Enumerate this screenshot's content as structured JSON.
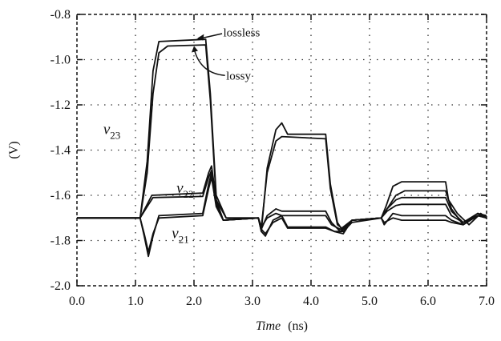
{
  "chart_data": {
    "type": "line",
    "title": "",
    "xlabel": {
      "italic": "Time",
      "unit": "(ns)"
    },
    "ylabel": "(V)",
    "xlim": [
      0.0,
      7.0
    ],
    "ylim": [
      -2.0,
      -0.8
    ],
    "x_ticks": [
      "0.0",
      "1.0",
      "2.0",
      "3.0",
      "4.0",
      "5.0",
      "6.0",
      "7.0"
    ],
    "y_ticks": [
      "-0.8",
      "-1.0",
      "-1.2",
      "-1.4",
      "-1.6",
      "-1.8",
      "-2.0"
    ],
    "grid": "dotted",
    "annotations": [
      {
        "text": "lossless",
        "x": 2.5,
        "y": -0.88
      },
      {
        "text": "lossy",
        "x": 2.55,
        "y": -1.07
      }
    ],
    "curve_labels": [
      {
        "symbol": "v",
        "sub": "23",
        "x": 0.45,
        "y": -1.33
      },
      {
        "symbol": "v",
        "sub": "22",
        "x": 1.7,
        "y": -1.59
      },
      {
        "symbol": "v",
        "sub": "21",
        "x": 1.62,
        "y": -1.79
      }
    ],
    "series": [
      {
        "name": "v23 lossless",
        "points": [
          [
            0,
            -1.7
          ],
          [
            1.08,
            -1.7
          ],
          [
            1.2,
            -1.45
          ],
          [
            1.3,
            -1.05
          ],
          [
            1.4,
            -0.92
          ],
          [
            2.2,
            -0.91
          ],
          [
            2.28,
            -1.15
          ],
          [
            2.38,
            -1.6
          ],
          [
            2.55,
            -1.7
          ],
          [
            3.1,
            -1.7
          ],
          [
            3.15,
            -1.76
          ],
          [
            3.25,
            -1.48
          ],
          [
            3.4,
            -1.31
          ],
          [
            3.5,
            -1.28
          ],
          [
            3.6,
            -1.33
          ],
          [
            4.25,
            -1.33
          ],
          [
            4.33,
            -1.55
          ],
          [
            4.45,
            -1.72
          ],
          [
            4.55,
            -1.76
          ],
          [
            4.7,
            -1.72
          ],
          [
            5.2,
            -1.7
          ],
          [
            5.28,
            -1.65
          ],
          [
            5.4,
            -1.56
          ],
          [
            5.55,
            -1.54
          ],
          [
            6.3,
            -1.54
          ],
          [
            6.35,
            -1.62
          ],
          [
            6.5,
            -1.68
          ],
          [
            6.7,
            -1.73
          ],
          [
            6.9,
            -1.68
          ],
          [
            7,
            -1.7
          ]
        ]
      },
      {
        "name": "v23 lossy",
        "points": [
          [
            0,
            -1.7
          ],
          [
            1.08,
            -1.7
          ],
          [
            1.2,
            -1.5
          ],
          [
            1.3,
            -1.15
          ],
          [
            1.4,
            -0.97
          ],
          [
            1.55,
            -0.94
          ],
          [
            2.2,
            -0.935
          ],
          [
            2.28,
            -1.18
          ],
          [
            2.38,
            -1.62
          ],
          [
            2.55,
            -1.7
          ],
          [
            3.1,
            -1.7
          ],
          [
            3.15,
            -1.74
          ],
          [
            3.25,
            -1.5
          ],
          [
            3.4,
            -1.36
          ],
          [
            3.5,
            -1.34
          ],
          [
            4.25,
            -1.35
          ],
          [
            4.33,
            -1.57
          ],
          [
            4.45,
            -1.73
          ],
          [
            4.55,
            -1.75
          ],
          [
            4.7,
            -1.71
          ],
          [
            5.2,
            -1.7
          ],
          [
            5.3,
            -1.66
          ],
          [
            5.45,
            -1.6
          ],
          [
            5.6,
            -1.58
          ],
          [
            6.3,
            -1.58
          ],
          [
            6.4,
            -1.66
          ],
          [
            6.6,
            -1.73
          ],
          [
            6.85,
            -1.68
          ],
          [
            7,
            -1.7
          ]
        ]
      },
      {
        "name": "v22 lossless",
        "points": [
          [
            0,
            -1.7
          ],
          [
            1.08,
            -1.7
          ],
          [
            1.2,
            -1.64
          ],
          [
            1.28,
            -1.6
          ],
          [
            2.15,
            -1.59
          ],
          [
            2.25,
            -1.5
          ],
          [
            2.3,
            -1.47
          ],
          [
            2.38,
            -1.62
          ],
          [
            2.5,
            -1.71
          ],
          [
            3.1,
            -1.7
          ],
          [
            3.15,
            -1.75
          ],
          [
            3.25,
            -1.69
          ],
          [
            3.4,
            -1.66
          ],
          [
            3.5,
            -1.67
          ],
          [
            4.25,
            -1.67
          ],
          [
            4.35,
            -1.72
          ],
          [
            4.5,
            -1.76
          ],
          [
            4.7,
            -1.71
          ],
          [
            5.2,
            -1.7
          ],
          [
            5.3,
            -1.66
          ],
          [
            5.45,
            -1.62
          ],
          [
            5.55,
            -1.61
          ],
          [
            6.3,
            -1.61
          ],
          [
            6.4,
            -1.67
          ],
          [
            6.6,
            -1.72
          ],
          [
            6.85,
            -1.68
          ],
          [
            7,
            -1.69
          ]
        ]
      },
      {
        "name": "v22 lossy",
        "points": [
          [
            0,
            -1.7
          ],
          [
            1.08,
            -1.7
          ],
          [
            1.2,
            -1.65
          ],
          [
            1.3,
            -1.61
          ],
          [
            2.15,
            -1.605
          ],
          [
            2.25,
            -1.52
          ],
          [
            2.3,
            -1.49
          ],
          [
            2.38,
            -1.63
          ],
          [
            2.5,
            -1.71
          ],
          [
            3.1,
            -1.7
          ],
          [
            3.15,
            -1.74
          ],
          [
            3.25,
            -1.7
          ],
          [
            3.4,
            -1.68
          ],
          [
            3.5,
            -1.69
          ],
          [
            4.25,
            -1.69
          ],
          [
            4.35,
            -1.73
          ],
          [
            4.5,
            -1.75
          ],
          [
            4.7,
            -1.71
          ],
          [
            5.2,
            -1.7
          ],
          [
            5.3,
            -1.67
          ],
          [
            5.45,
            -1.645
          ],
          [
            5.55,
            -1.64
          ],
          [
            6.3,
            -1.64
          ],
          [
            6.4,
            -1.69
          ],
          [
            6.6,
            -1.72
          ],
          [
            6.85,
            -1.69
          ],
          [
            7,
            -1.69
          ]
        ]
      },
      {
        "name": "v21 lossless",
        "points": [
          [
            0,
            -1.7
          ],
          [
            1.08,
            -1.7
          ],
          [
            1.15,
            -1.78
          ],
          [
            1.22,
            -1.87
          ],
          [
            1.3,
            -1.78
          ],
          [
            1.4,
            -1.69
          ],
          [
            2.15,
            -1.68
          ],
          [
            2.25,
            -1.55
          ],
          [
            2.3,
            -1.5
          ],
          [
            2.38,
            -1.64
          ],
          [
            2.5,
            -1.71
          ],
          [
            3.1,
            -1.7
          ],
          [
            3.15,
            -1.76
          ],
          [
            3.22,
            -1.78
          ],
          [
            3.35,
            -1.71
          ],
          [
            3.5,
            -1.69
          ],
          [
            3.6,
            -1.74
          ],
          [
            4.25,
            -1.74
          ],
          [
            4.4,
            -1.76
          ],
          [
            4.55,
            -1.77
          ],
          [
            4.7,
            -1.71
          ],
          [
            5.2,
            -1.7
          ],
          [
            5.25,
            -1.73
          ],
          [
            5.4,
            -1.68
          ],
          [
            5.55,
            -1.69
          ],
          [
            6.3,
            -1.69
          ],
          [
            6.4,
            -1.71
          ],
          [
            6.6,
            -1.73
          ],
          [
            6.85,
            -1.69
          ],
          [
            7,
            -1.7
          ]
        ]
      },
      {
        "name": "v21 lossy",
        "points": [
          [
            0,
            -1.7
          ],
          [
            1.08,
            -1.7
          ],
          [
            1.15,
            -1.77
          ],
          [
            1.22,
            -1.85
          ],
          [
            1.3,
            -1.77
          ],
          [
            1.4,
            -1.7
          ],
          [
            2.15,
            -1.69
          ],
          [
            2.25,
            -1.57
          ],
          [
            2.3,
            -1.52
          ],
          [
            2.38,
            -1.65
          ],
          [
            2.5,
            -1.71
          ],
          [
            3.1,
            -1.7
          ],
          [
            3.15,
            -1.75
          ],
          [
            3.22,
            -1.77
          ],
          [
            3.35,
            -1.72
          ],
          [
            3.5,
            -1.7
          ],
          [
            3.6,
            -1.745
          ],
          [
            4.25,
            -1.745
          ],
          [
            4.4,
            -1.76
          ],
          [
            4.55,
            -1.76
          ],
          [
            4.7,
            -1.71
          ],
          [
            5.2,
            -1.7
          ],
          [
            5.25,
            -1.72
          ],
          [
            5.4,
            -1.7
          ],
          [
            5.55,
            -1.71
          ],
          [
            6.3,
            -1.71
          ],
          [
            6.4,
            -1.72
          ],
          [
            6.6,
            -1.73
          ],
          [
            6.85,
            -1.69
          ],
          [
            7,
            -1.7
          ]
        ]
      }
    ]
  }
}
